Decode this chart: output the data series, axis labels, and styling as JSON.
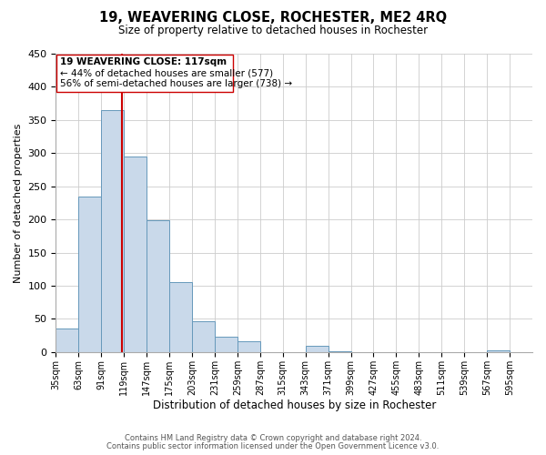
{
  "title": "19, WEAVERING CLOSE, ROCHESTER, ME2 4RQ",
  "subtitle": "Size of property relative to detached houses in Rochester",
  "xlabel": "Distribution of detached houses by size in Rochester",
  "ylabel": "Number of detached properties",
  "bar_color": "#c9d9ea",
  "bar_edge_color": "#6699bb",
  "vline_value": 117,
  "vline_color": "#cc0000",
  "bins_left": [
    35,
    63,
    91,
    119,
    147,
    175,
    203,
    231,
    259,
    287,
    315,
    343,
    371,
    399,
    427,
    455,
    483,
    511,
    539,
    567
  ],
  "bin_width": 28,
  "bar_heights": [
    35,
    235,
    365,
    295,
    199,
    106,
    46,
    23,
    16,
    0,
    0,
    9,
    1,
    0,
    0,
    0,
    0,
    0,
    0,
    2
  ],
  "ylim": [
    0,
    450
  ],
  "yticks": [
    0,
    50,
    100,
    150,
    200,
    250,
    300,
    350,
    400,
    450
  ],
  "xtick_labels": [
    "35sqm",
    "63sqm",
    "91sqm",
    "119sqm",
    "147sqm",
    "175sqm",
    "203sqm",
    "231sqm",
    "259sqm",
    "287sqm",
    "315sqm",
    "343sqm",
    "371sqm",
    "399sqm",
    "427sqm",
    "455sqm",
    "483sqm",
    "511sqm",
    "539sqm",
    "567sqm",
    "595sqm"
  ],
  "annotation_title": "19 WEAVERING CLOSE: 117sqm",
  "annotation_line1": "← 44% of detached houses are smaller (577)",
  "annotation_line2": "56% of semi-detached houses are larger (738) →",
  "footer1": "Contains HM Land Registry data © Crown copyright and database right 2024.",
  "footer2": "Contains public sector information licensed under the Open Government Licence v3.0.",
  "background_color": "#ffffff",
  "grid_color": "#cccccc"
}
